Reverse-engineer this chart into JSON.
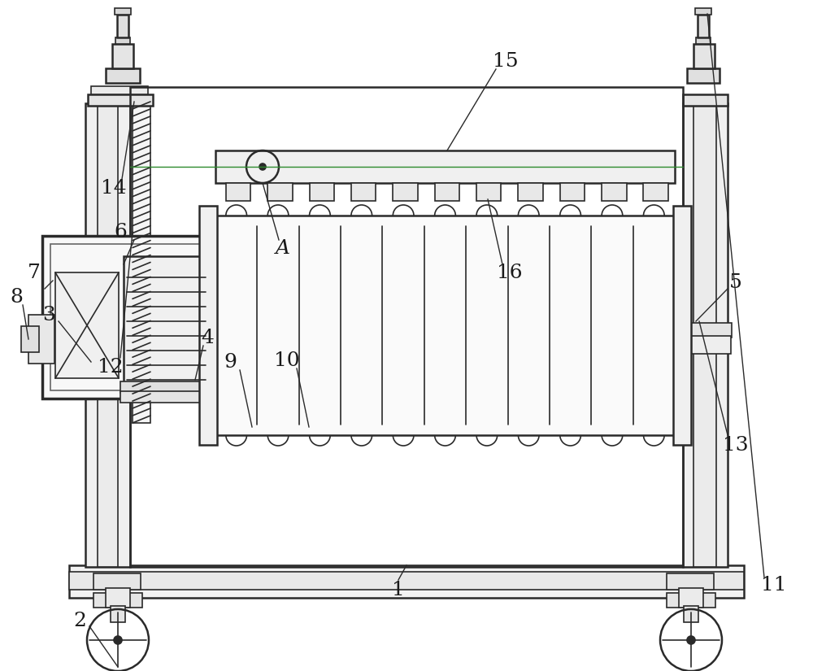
{
  "bg_color": "#ffffff",
  "line_color": "#2a2a2a",
  "green_line_color": "#2d8a2d",
  "label_color": "#1a1a1a",
  "figsize": [
    10.0,
    8.25
  ],
  "dpi": 100
}
